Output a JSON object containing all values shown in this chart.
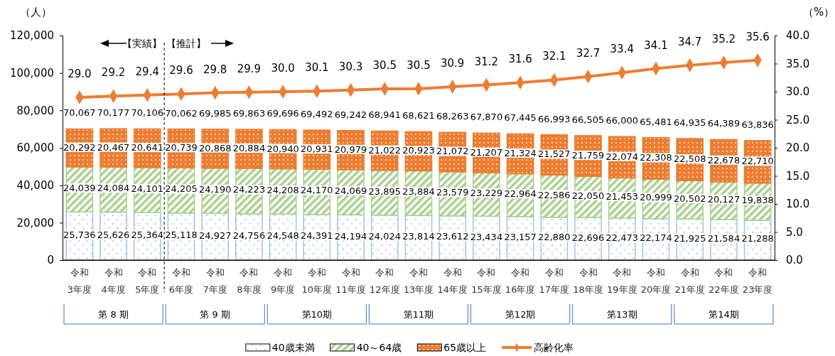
{
  "chart_data": {
    "type": "bar",
    "stacked": true,
    "ylabel": "（人）",
    "y2label": "（%）",
    "categories": [
      "令和\n3年度",
      "令和\n4年度",
      "令和\n5年度",
      "令和\n6年度",
      "令和\n7年度",
      "令和\n8年度",
      "令和\n9年度",
      "令和\n10年度",
      "令和\n11年度",
      "令和\n12年度",
      "令和\n13年度",
      "令和\n14年度",
      "令和\n15年度",
      "令和\n16年度",
      "令和\n17年度",
      "令和\n18年度",
      "令和\n19年度",
      "令和\n20年度",
      "令和\n21年度",
      "令和\n22年度",
      "令和\n23年度"
    ],
    "series": [
      {
        "name": "40歳未満",
        "color": "#9dc3e6",
        "values": [
          25736,
          25626,
          25364,
          25118,
          24927,
          24756,
          24548,
          24391,
          24194,
          24024,
          23814,
          23612,
          23434,
          23157,
          22880,
          22696,
          22473,
          22174,
          21925,
          21584,
          21288
        ],
        "value_labels": [
          "25,736",
          "25,626",
          "25,364",
          "25,118",
          "24,927",
          "24,756",
          "24,548",
          "24,391",
          "24,194",
          "24,024",
          "23,814",
          "23,612",
          "23,434",
          "23,157",
          "22,880",
          "22,696",
          "22,473",
          "22,174",
          "21,925",
          "21,584",
          "21,288"
        ]
      },
      {
        "name": "40～64歳",
        "color": "#a9d18e",
        "values": [
          24039,
          24084,
          24101,
          24205,
          24190,
          24223,
          24208,
          24170,
          24069,
          23895,
          23884,
          23579,
          23229,
          22964,
          22586,
          22050,
          21453,
          20999,
          20502,
          20127,
          19838
        ],
        "value_labels": [
          "24,039",
          "24,084",
          "24,101",
          "24,205",
          "24,190",
          "24,223",
          "24,208",
          "24,170",
          "24,069",
          "23,895",
          "23,884",
          "23,579",
          "23,229",
          "22,964",
          "22,586",
          "22,050",
          "21,453",
          "20,999",
          "20,502",
          "20,127",
          "19,838"
        ]
      },
      {
        "name": "65歳以上",
        "color": "#ed7d31",
        "values": [
          20292,
          20467,
          20641,
          20739,
          20868,
          20884,
          20940,
          20931,
          20979,
          21022,
          20923,
          21072,
          21207,
          21324,
          21527,
          21759,
          22074,
          22308,
          22508,
          22678,
          22710
        ],
        "value_labels": [
          "20,292",
          "20,467",
          "20,641",
          "20,739",
          "20,868",
          "20,884",
          "20,940",
          "20,931",
          "20,979",
          "21,022",
          "20,923",
          "21,072",
          "21,207",
          "21,324",
          "21,527",
          "21,759",
          "22,074",
          "22,308",
          "22,508",
          "22,678",
          "22,710"
        ]
      },
      {
        "name": "高齢化率",
        "type": "line",
        "axis": "y2",
        "color": "#ed7d31",
        "marker": "diamond",
        "values": [
          29.0,
          29.2,
          29.4,
          29.6,
          29.8,
          29.9,
          30.0,
          30.1,
          30.3,
          30.5,
          30.5,
          30.9,
          31.2,
          31.6,
          32.1,
          32.7,
          33.4,
          34.1,
          34.7,
          35.2,
          35.6
        ],
        "value_labels": [
          "29.0",
          "29.2",
          "29.4",
          "29.6",
          "29.8",
          "29.9",
          "30.0",
          "30.1",
          "30.3",
          "30.5",
          "30.5",
          "30.9",
          "31.2",
          "31.6",
          "32.1",
          "32.7",
          "33.4",
          "34.1",
          "34.7",
          "35.2",
          "35.6"
        ]
      }
    ],
    "totals": [
      "70,067",
      "70,177",
      "70,106",
      "70,062",
      "69,985",
      "69,863",
      "69,696",
      "69,492",
      "69,242",
      "68,941",
      "68,621",
      "68,263",
      "67,870",
      "67,445",
      "66,993",
      "66,505",
      "66,000",
      "65,481",
      "64,935",
      "64,389",
      "63,836"
    ],
    "ylim": [
      0,
      120000
    ],
    "yticks": [
      {
        "value": 0,
        "label": "0"
      },
      {
        "value": 20000,
        "label": "20,000"
      },
      {
        "value": 40000,
        "label": "40,000"
      },
      {
        "value": 60000,
        "label": "60,000"
      },
      {
        "value": 80000,
        "label": "80,000"
      },
      {
        "value": 100000,
        "label": "100,000"
      },
      {
        "value": 120000,
        "label": "120,000"
      }
    ],
    "y2lim": [
      0,
      40
    ],
    "y2ticks": [
      {
        "value": 0,
        "label": "0.0"
      },
      {
        "value": 5,
        "label": "5.0"
      },
      {
        "value": 10,
        "label": "10.0"
      },
      {
        "value": 15,
        "label": "15.0"
      },
      {
        "value": 20,
        "label": "20.0"
      },
      {
        "value": 25,
        "label": "25.0"
      },
      {
        "value": 30,
        "label": "30.0"
      },
      {
        "value": 35,
        "label": "35.0"
      },
      {
        "value": 40,
        "label": "40.0"
      }
    ],
    "annotations": [
      "【実績】",
      "【推計】",
      "第 8 期",
      "第 9 期",
      "第10期",
      "第11期",
      "第12期",
      "第13期",
      "第14期"
    ],
    "legend": "bottom",
    "grid": false,
    "line_style": "solid"
  }
}
